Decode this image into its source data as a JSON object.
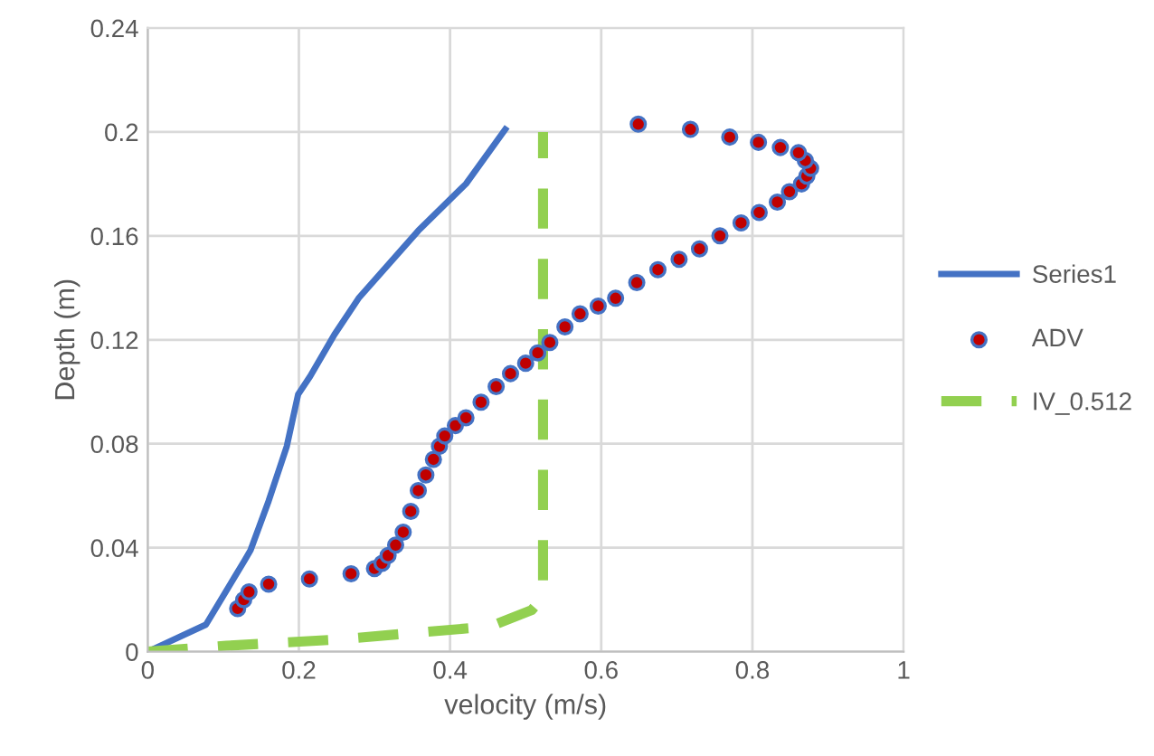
{
  "chart_data": {
    "type": "line",
    "xlabel": "velocity (m/s)",
    "ylabel": "Depth (m)",
    "xlim": [
      0,
      1
    ],
    "ylim": [
      0,
      0.24
    ],
    "xticks": [
      0,
      0.2,
      0.4,
      0.6,
      0.8,
      1
    ],
    "yticks": [
      0,
      0.04,
      0.08,
      0.12,
      0.16,
      0.2,
      0.24
    ],
    "grid": true,
    "legend": "right",
    "series": [
      {
        "name": "Series1",
        "color": "#4472c4",
        "line_style": "solid",
        "marker": "none",
        "x": [
          0,
          0.077,
          0.128,
          0.136,
          0.16,
          0.184,
          0.199,
          0.215,
          0.247,
          0.279,
          0.358,
          0.421,
          0.473
        ],
        "values": [
          0,
          0.0104,
          0.035,
          0.039,
          0.058,
          0.079,
          0.099,
          0.106,
          0.122,
          0.136,
          0.162,
          0.18,
          0.201
        ]
      },
      {
        "name": "ADV",
        "type": "scatter",
        "color": "#c00000",
        "marker": "circle",
        "x": [
          0.119,
          0.127,
          0.134,
          0.16,
          0.214,
          0.269,
          0.3,
          0.31,
          0.318,
          0.328,
          0.338,
          0.348,
          0.358,
          0.368,
          0.378,
          0.386,
          0.393,
          0.407,
          0.421,
          0.441,
          0.461,
          0.48,
          0.5,
          0.516,
          0.532,
          0.552,
          0.572,
          0.596,
          0.619,
          0.647,
          0.675,
          0.703,
          0.73,
          0.757,
          0.785,
          0.809,
          0.833,
          0.849,
          0.865,
          0.872,
          0.877,
          0.87,
          0.861,
          0.837,
          0.808,
          0.77,
          0.718,
          0.649
        ],
        "values": [
          0.0166,
          0.02,
          0.023,
          0.026,
          0.028,
          0.03,
          0.032,
          0.034,
          0.037,
          0.041,
          0.046,
          0.054,
          0.062,
          0.068,
          0.074,
          0.079,
          0.083,
          0.087,
          0.09,
          0.096,
          0.102,
          0.107,
          0.111,
          0.115,
          0.119,
          0.125,
          0.13,
          0.133,
          0.136,
          0.142,
          0.147,
          0.151,
          0.155,
          0.16,
          0.165,
          0.169,
          0.173,
          0.177,
          0.18,
          0.183,
          0.186,
          0.189,
          0.192,
          0.194,
          0.196,
          0.198,
          0.201,
          0.203
        ]
      },
      {
        "name": "IV_0.512",
        "color": "#92d050",
        "line_style": "dashed",
        "marker": "none",
        "x": [
          0,
          0.104,
          0.247,
          0.453,
          0.508,
          0.523,
          0.523
        ],
        "values": [
          0,
          0.0023,
          0.0046,
          0.0097,
          0.016,
          0.021,
          0.2
        ]
      }
    ]
  }
}
